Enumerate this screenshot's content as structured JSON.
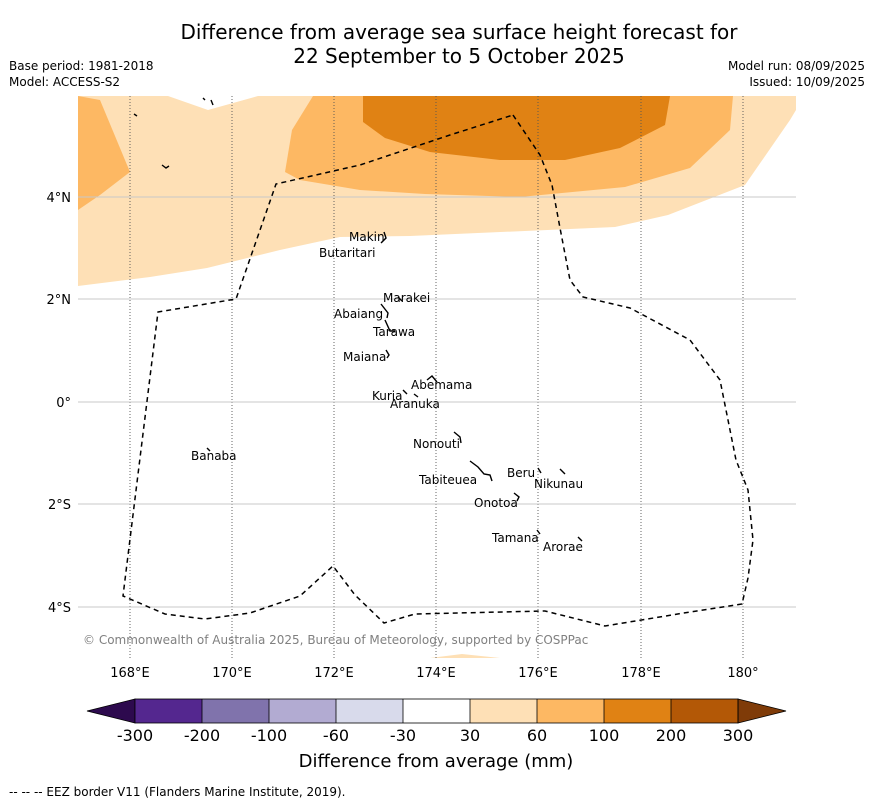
{
  "title": {
    "line1": "Difference from average sea surface height forecast for",
    "line2": "22 September to 5 October 2025"
  },
  "meta_left": {
    "base_period": "Base period: 1981-2018",
    "model": "Model: ACCESS-S2"
  },
  "meta_right": {
    "model_run": "Model run: 08/09/2025",
    "issued": "Issued: 10/09/2025"
  },
  "map": {
    "lon_ticks": [
      "168°E",
      "170°E",
      "172°E",
      "174°E",
      "176°E",
      "178°E",
      "180°"
    ],
    "lat_ticks": [
      "4°N",
      "2°N",
      "0°",
      "2°S",
      "4°S"
    ],
    "copyright": "© Commonwealth of Australia 2025, Bureau of Meteorology, supported by COSPPac",
    "islands": [
      {
        "name": "Makin"
      },
      {
        "name": "Butaritari"
      },
      {
        "name": "Marakei"
      },
      {
        "name": "Abaiang"
      },
      {
        "name": "Tarawa"
      },
      {
        "name": "Maiana"
      },
      {
        "name": "Abemama"
      },
      {
        "name": "Kuria"
      },
      {
        "name": "Aranuka"
      },
      {
        "name": "Nonouti"
      },
      {
        "name": "Banaba"
      },
      {
        "name": "Beru"
      },
      {
        "name": "Nikunau"
      },
      {
        "name": "Tabiteuea"
      },
      {
        "name": "Onotoa"
      },
      {
        "name": "Tamana"
      },
      {
        "name": "Arorae"
      }
    ]
  },
  "colorbar": {
    "title": "Difference from average (mm)",
    "ticks": [
      "-300",
      "-200",
      "-100",
      "-60",
      "-30",
      "30",
      "60",
      "100",
      "200",
      "300"
    ],
    "colors": {
      "lt_-300": "#2d0a4e",
      "-300_-200": "#54278f",
      "-200_-100": "#8073ac",
      "-100_-60": "#b2abd2",
      "-60_-30": "#d8daeb",
      "-30_30": "#ffffff",
      "30_60": "#fee0b6",
      "60_100": "#fdb863",
      "100_200": "#e08214",
      "200_300": "#b35806",
      "gt_300": "#7f3b08"
    }
  },
  "footer": "--  --  -- EEZ border V11 (Flanders Marine Institute, 2019)."
}
